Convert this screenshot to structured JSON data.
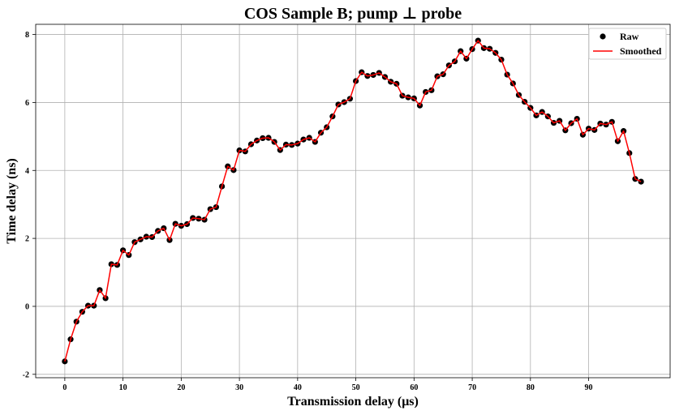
{
  "chart_data": {
    "type": "scatter",
    "title": "COS Sample B; pump ⊥ probe",
    "xlabel": "Transmission delay (μs)",
    "ylabel": "Time delay (ns)",
    "xlim": [
      -5,
      104
    ],
    "ylim": [
      -2.1,
      8.3
    ],
    "x_ticks": [
      0,
      10,
      20,
      30,
      40,
      50,
      60,
      70,
      80,
      90
    ],
    "y_ticks": [
      -2,
      0,
      2,
      4,
      6,
      8
    ],
    "grid": true,
    "legend_position": "top-right",
    "colors": {
      "raw": "#000000",
      "smoothed": "#ff0000",
      "grid": "#b0b0b0"
    },
    "x": [
      0,
      1,
      2,
      3,
      4,
      5,
      6,
      7,
      8,
      9,
      10,
      11,
      12,
      13,
      14,
      15,
      16,
      17,
      18,
      19,
      20,
      21,
      22,
      23,
      24,
      25,
      26,
      27,
      28,
      29,
      30,
      31,
      32,
      33,
      34,
      35,
      36,
      37,
      38,
      39,
      40,
      41,
      42,
      43,
      44,
      45,
      46,
      47,
      48,
      49,
      50,
      51,
      52,
      53,
      54,
      55,
      56,
      57,
      58,
      59,
      60,
      61,
      62,
      63,
      64,
      65,
      66,
      67,
      68,
      69,
      70,
      71,
      72,
      73,
      74,
      75,
      76,
      77,
      78,
      79,
      80,
      81,
      82,
      83,
      84,
      85,
      86,
      87,
      88,
      89,
      90,
      91,
      92,
      93,
      94,
      95,
      96,
      97,
      98,
      99
    ],
    "series": [
      {
        "name": "Raw",
        "style": "markers",
        "values": [
          -1.62,
          -0.97,
          -0.45,
          -0.16,
          0.02,
          0.02,
          0.48,
          0.24,
          1.24,
          1.22,
          1.65,
          1.51,
          1.89,
          1.97,
          2.05,
          2.04,
          2.22,
          2.3,
          1.95,
          2.43,
          2.37,
          2.42,
          2.6,
          2.58,
          2.55,
          2.86,
          2.92,
          3.53,
          4.12,
          4.01,
          4.59,
          4.56,
          4.77,
          4.88,
          4.95,
          4.96,
          4.84,
          4.6,
          4.76,
          4.75,
          4.79,
          4.91,
          4.96,
          4.84,
          5.11,
          5.27,
          5.59,
          5.94,
          6.01,
          6.11,
          6.63,
          6.89,
          6.78,
          6.81,
          6.87,
          6.75,
          6.61,
          6.55,
          6.2,
          6.15,
          6.12,
          5.91,
          6.31,
          6.36,
          6.77,
          6.83,
          7.09,
          7.21,
          7.51,
          7.29,
          7.57,
          7.82,
          7.6,
          7.58,
          7.46,
          7.26,
          6.82,
          6.56,
          6.22,
          6.02,
          5.84,
          5.62,
          5.72,
          5.59,
          5.4,
          5.46,
          5.18,
          5.39,
          5.52,
          5.05,
          5.23,
          5.19,
          5.38,
          5.35,
          5.43,
          4.86,
          5.16,
          4.51,
          3.75,
          3.67
        ]
      },
      {
        "name": "Smoothed",
        "style": "line",
        "values": [
          -1.62,
          -0.97,
          -0.45,
          -0.16,
          0.02,
          0.02,
          0.48,
          0.24,
          1.24,
          1.22,
          1.65,
          1.51,
          1.89,
          1.97,
          2.05,
          2.04,
          2.22,
          2.3,
          1.95,
          2.43,
          2.37,
          2.42,
          2.6,
          2.58,
          2.55,
          2.86,
          2.92,
          3.53,
          4.12,
          4.01,
          4.59,
          4.56,
          4.77,
          4.88,
          4.95,
          4.96,
          4.84,
          4.6,
          4.76,
          4.75,
          4.79,
          4.91,
          4.96,
          4.84,
          5.11,
          5.27,
          5.59,
          5.94,
          6.01,
          6.11,
          6.63,
          6.89,
          6.78,
          6.81,
          6.87,
          6.75,
          6.61,
          6.55,
          6.2,
          6.15,
          6.12,
          5.91,
          6.31,
          6.36,
          6.77,
          6.83,
          7.09,
          7.21,
          7.51,
          7.29,
          7.57,
          7.82,
          7.6,
          7.58,
          7.46,
          7.26,
          6.82,
          6.56,
          6.22,
          6.02,
          5.84,
          5.62,
          5.72,
          5.59,
          5.4,
          5.46,
          5.18,
          5.39,
          5.52,
          5.05,
          5.23,
          5.19,
          5.38,
          5.35,
          5.43,
          4.86,
          5.16,
          4.51,
          3.75,
          3.67
        ]
      }
    ]
  }
}
